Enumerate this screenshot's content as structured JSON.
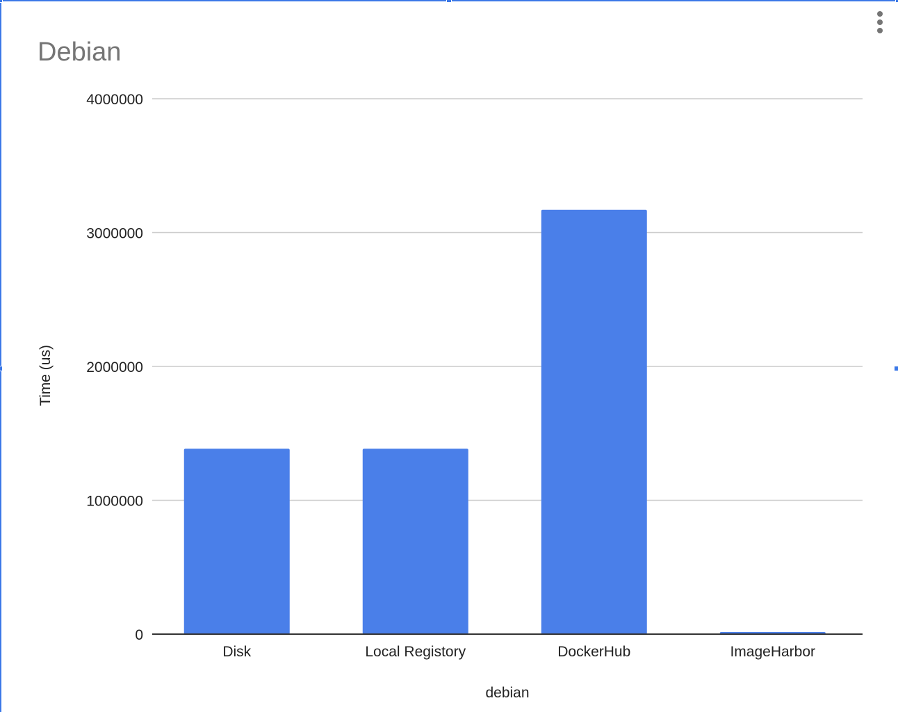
{
  "chart_data": {
    "type": "bar",
    "title": "Debian",
    "xlabel": "debian",
    "ylabel": "Time (us)",
    "categories": [
      "Disk",
      "Local Registory",
      "DockerHub",
      "ImageHarbor"
    ],
    "values": [
      1385000,
      1385000,
      3170000,
      12000
    ],
    "ylim": [
      0,
      4000000
    ],
    "yticks": [
      "0",
      "1000000",
      "2000000",
      "3000000",
      "4000000"
    ],
    "grid": true,
    "colors": {
      "bar": "#4a7fe9",
      "grid": "#cccccc",
      "axis": "#333333",
      "title": "#757575",
      "selection": "#3b78e7"
    }
  },
  "toolbar": {
    "menu_icon": "more-vert-icon"
  }
}
